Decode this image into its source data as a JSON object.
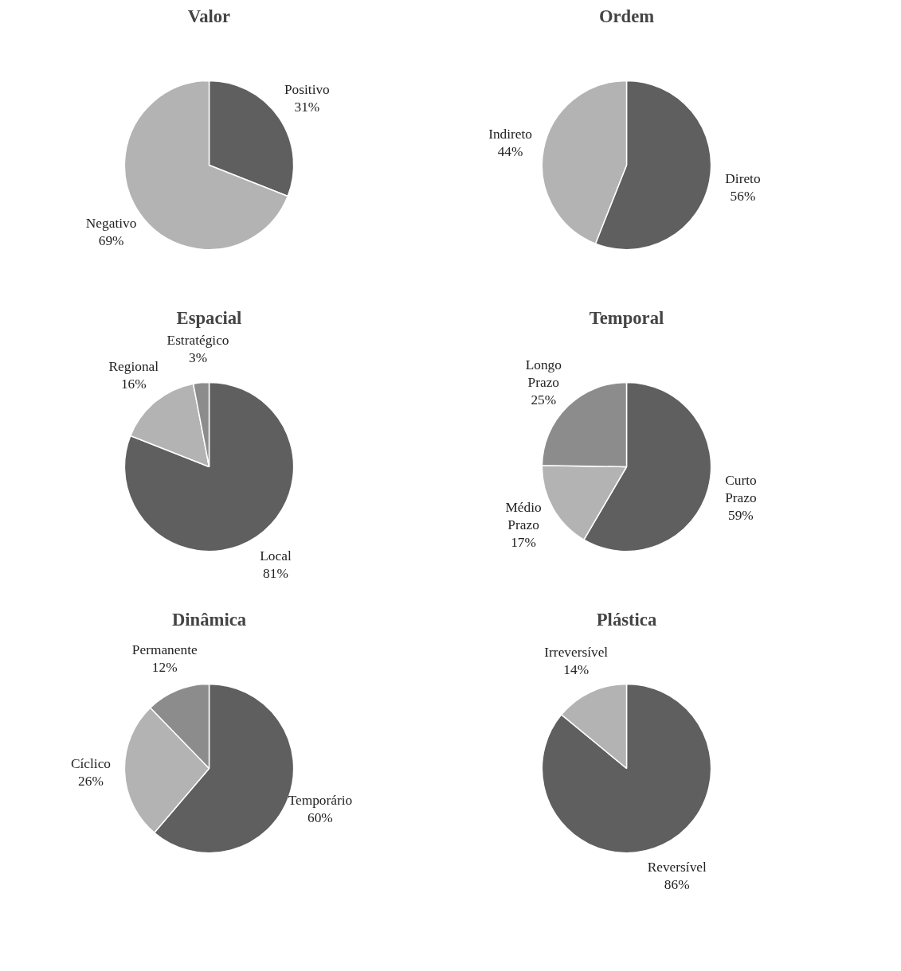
{
  "chart_data": [
    {
      "type": "pie",
      "title": "Valor",
      "categories": [
        "Positivo",
        "Negativo"
      ],
      "values": [
        31,
        69
      ],
      "value_labels": [
        "31%",
        "69%"
      ],
      "colors": [
        "#5f5f5f",
        "#b3b3b3"
      ]
    },
    {
      "type": "pie",
      "title": "Ordem",
      "categories": [
        "Direto",
        "Indireto"
      ],
      "values": [
        56,
        44
      ],
      "value_labels": [
        "56%",
        "44%"
      ],
      "colors": [
        "#5f5f5f",
        "#b3b3b3"
      ]
    },
    {
      "type": "pie",
      "title": "Espacial",
      "categories": [
        "Local",
        "Regional",
        "Estratégico"
      ],
      "values": [
        81,
        16,
        3
      ],
      "value_labels": [
        "81%",
        "16%",
        "3%"
      ],
      "colors": [
        "#5f5f5f",
        "#b3b3b3",
        "#8c8c8c"
      ]
    },
    {
      "type": "pie",
      "title": "Temporal",
      "categories": [
        "Curto Prazo",
        "Médio Prazo",
        "Longo Prazo"
      ],
      "values": [
        59,
        17,
        25
      ],
      "value_labels": [
        "59%",
        "17%",
        "25%"
      ],
      "colors": [
        "#5f5f5f",
        "#b3b3b3",
        "#8c8c8c"
      ]
    },
    {
      "type": "pie",
      "title": "Dinâmica",
      "categories": [
        "Temporário",
        "Cíclico",
        "Permanente"
      ],
      "values": [
        60,
        26,
        12
      ],
      "value_labels": [
        "60%",
        "26%",
        "12%"
      ],
      "colors": [
        "#5f5f5f",
        "#b3b3b3",
        "#8c8c8c"
      ]
    },
    {
      "type": "pie",
      "title": "Plástica",
      "categories": [
        "Reversível",
        "Irreversível"
      ],
      "values": [
        86,
        14
      ],
      "value_labels": [
        "86%",
        "14%"
      ],
      "colors": [
        "#5f5f5f",
        "#b3b3b3"
      ]
    }
  ]
}
